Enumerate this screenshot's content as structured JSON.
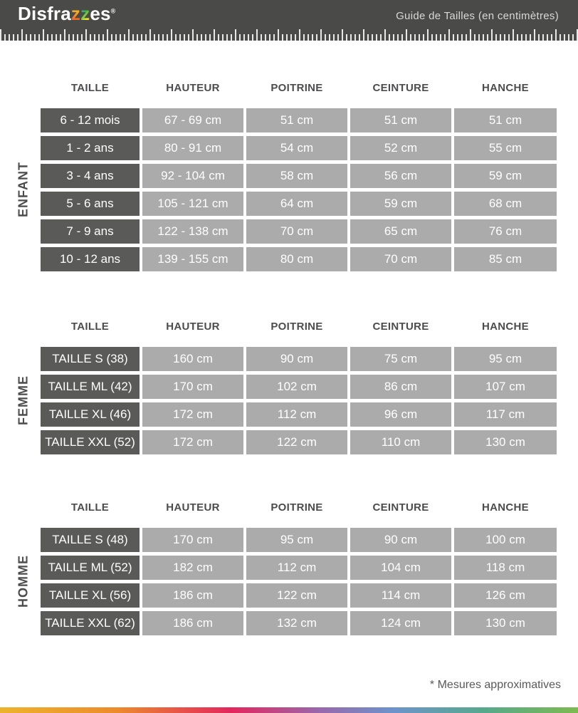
{
  "header": {
    "logo": {
      "prefix": "Disfra",
      "z1": "z",
      "z2": "z",
      "suffix": "es",
      "registered": "®"
    },
    "title": "Guide de Tailles (en centimètres)"
  },
  "columns": [
    "TAILLE",
    "HAUTEUR",
    "POITRINE",
    "CEINTURE",
    "HANCHE"
  ],
  "sections": [
    {
      "label": "ENFANT",
      "rows": [
        [
          "6 - 12 mois",
          "67 - 69 cm",
          "51 cm",
          "51 cm",
          "51 cm"
        ],
        [
          "1 - 2 ans",
          "80 - 91 cm",
          "54 cm",
          "52 cm",
          "55 cm"
        ],
        [
          "3 - 4 ans",
          "92 - 104 cm",
          "58 cm",
          "56 cm",
          "59 cm"
        ],
        [
          "5 - 6 ans",
          "105 - 121 cm",
          "64 cm",
          "59 cm",
          "68 cm"
        ],
        [
          "7 - 9 ans",
          "122 - 138 cm",
          "70 cm",
          "65 cm",
          "76 cm"
        ],
        [
          "10 - 12 ans",
          "139 - 155 cm",
          "80 cm",
          "70 cm",
          "85 cm"
        ]
      ]
    },
    {
      "label": "FEMME",
      "rows": [
        [
          "TAILLE S (38)",
          "160 cm",
          "90 cm",
          "75 cm",
          "95 cm"
        ],
        [
          "TAILLE ML (42)",
          "170 cm",
          "102 cm",
          "86 cm",
          "107 cm"
        ],
        [
          "TAILLE XL (46)",
          "172 cm",
          "112 cm",
          "96 cm",
          "117 cm"
        ],
        [
          "TAILLE XXL (52)",
          "172 cm",
          "122 cm",
          "110 cm",
          "130 cm"
        ]
      ]
    },
    {
      "label": "HOMME",
      "rows": [
        [
          "TAILLE S (48)",
          "170 cm",
          "95 cm",
          "90 cm",
          "100 cm"
        ],
        [
          "TAILLE ML (52)",
          "182 cm",
          "112 cm",
          "104 cm",
          "118 cm"
        ],
        [
          "TAILLE XL (56)",
          "186 cm",
          "122 cm",
          "114 cm",
          "126 cm"
        ],
        [
          "TAILLE XXL (62)",
          "186 cm",
          "132 cm",
          "124 cm",
          "130 cm"
        ]
      ]
    }
  ],
  "footnote": "* Mesures approximatives",
  "colors": {
    "header_bar": "#4a4a48",
    "cell_dark": "#5a5a58",
    "cell_light": "#ababab",
    "header_text": "#4c4c4e",
    "gradient_stops": [
      "#edb32b",
      "#ec8c2b",
      "#e3275d",
      "#9a67ab",
      "#6d93cb",
      "#57a98c",
      "#7eba50"
    ]
  }
}
